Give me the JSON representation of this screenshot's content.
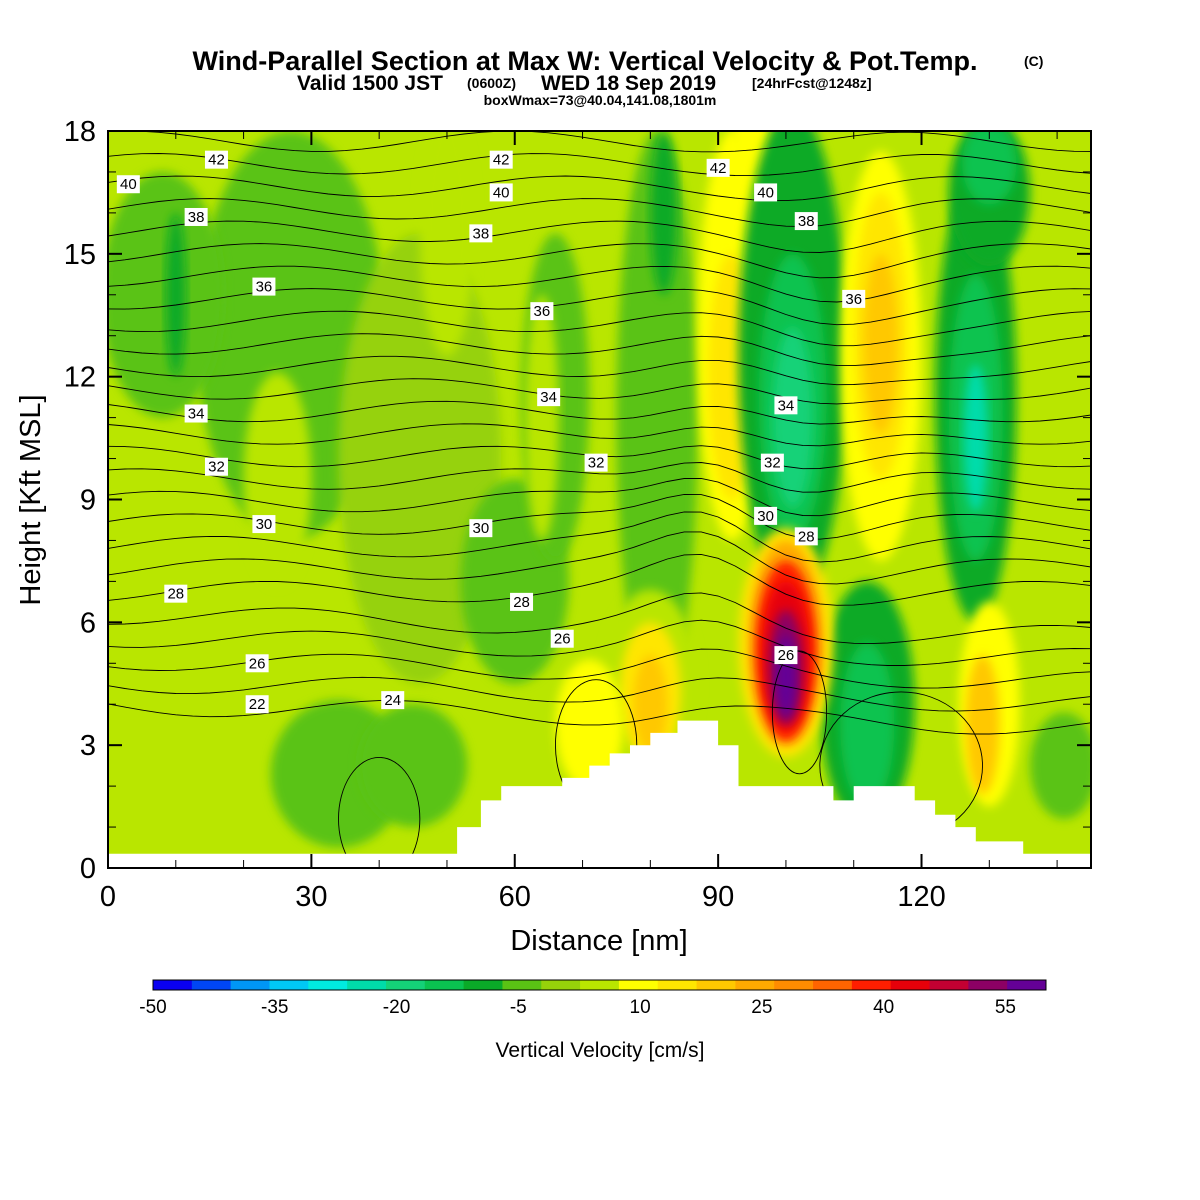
{
  "header": {
    "title_main": "Wind-Parallel Section at Max W: Vertical Velocity & Pot.Temp.",
    "title_mark": "(C)",
    "subtitle_valid": "Valid 1500 JST",
    "subtitle_z": "(0600Z)",
    "subtitle_date": "WED 18 Sep 2019",
    "subtitle_fcst": "[24hrFcst@1248z]",
    "box_info": "boxWmax=73@40.04,141.08,1801m"
  },
  "chart_data": {
    "type": "heatmap",
    "title": "Wind-Parallel Section at Max W: Vertical Velocity & Pot.Temp.",
    "xlabel": "Distance [nm]",
    "ylabel": "Height [Kft MSL]",
    "xlim": [
      0,
      145
    ],
    "ylim": [
      0,
      18
    ],
    "x_ticks": [
      "0",
      "30",
      "60",
      "90",
      "120"
    ],
    "y_ticks": [
      "0",
      "3",
      "6",
      "9",
      "12",
      "15",
      "18"
    ],
    "colorbar": {
      "label": "Vertical Velocity [cm/s]",
      "tick_labels": [
        "-50",
        "-35",
        "-20",
        "-5",
        "10",
        "25",
        "40",
        "55"
      ],
      "bin_edges": [
        -50,
        -45,
        -40,
        -35,
        -30,
        -25,
        -20,
        -15,
        -10,
        -5,
        0,
        5,
        10,
        15,
        20,
        25,
        30,
        35,
        40,
        45,
        50,
        55,
        60
      ],
      "colors": [
        "#0a00f0",
        "#0046f5",
        "#0096f5",
        "#00c8f5",
        "#00ebe0",
        "#00dcaa",
        "#14d278",
        "#0ac350",
        "#0aaa28",
        "#5ac314",
        "#96d20a",
        "#b9e600",
        "#ffff00",
        "#ffe600",
        "#ffc800",
        "#ffaa00",
        "#ff8c00",
        "#ff6400",
        "#ff1e00",
        "#e6000a",
        "#c30032",
        "#8c0064",
        "#640096"
      ]
    },
    "theta_contour_labels": [
      {
        "text": "42",
        "x": 16,
        "y": 17.3
      },
      {
        "text": "42",
        "x": 58,
        "y": 17.3
      },
      {
        "text": "42",
        "x": 90,
        "y": 17.1
      },
      {
        "text": "40",
        "x": 3,
        "y": 16.7
      },
      {
        "text": "40",
        "x": 58,
        "y": 16.5
      },
      {
        "text": "40",
        "x": 97,
        "y": 16.5
      },
      {
        "text": "38",
        "x": 13,
        "y": 15.9
      },
      {
        "text": "38",
        "x": 55,
        "y": 15.5
      },
      {
        "text": "38",
        "x": 103,
        "y": 15.8
      },
      {
        "text": "36",
        "x": 23,
        "y": 14.2
      },
      {
        "text": "36",
        "x": 64,
        "y": 13.6
      },
      {
        "text": "36",
        "x": 110,
        "y": 13.9
      },
      {
        "text": "34",
        "x": 13,
        "y": 11.1
      },
      {
        "text": "34",
        "x": 65,
        "y": 11.5
      },
      {
        "text": "34",
        "x": 100,
        "y": 11.3
      },
      {
        "text": "32",
        "x": 16,
        "y": 9.8
      },
      {
        "text": "32",
        "x": 72,
        "y": 9.9
      },
      {
        "text": "32",
        "x": 98,
        "y": 9.9
      },
      {
        "text": "30",
        "x": 23,
        "y": 8.4
      },
      {
        "text": "30",
        "x": 55,
        "y": 8.3
      },
      {
        "text": "30",
        "x": 97,
        "y": 8.6
      },
      {
        "text": "28",
        "x": 103,
        "y": 8.1
      },
      {
        "text": "28",
        "x": 10,
        "y": 6.7
      },
      {
        "text": "28",
        "x": 61,
        "y": 6.5
      },
      {
        "text": "26",
        "x": 67,
        "y": 5.6
      },
      {
        "text": "26",
        "x": 100,
        "y": 5.2
      },
      {
        "text": "26",
        "x": 22,
        "y": 5.0
      },
      {
        "text": "24",
        "x": 42,
        "y": 4.1
      },
      {
        "text": "22",
        "x": 22,
        "y": 4.0
      }
    ],
    "terrain_profile_kft": [
      [
        0,
        0.35
      ],
      [
        51.5,
        0.35
      ],
      [
        51.5,
        1.0
      ],
      [
        55,
        1.0
      ],
      [
        55,
        1.65
      ],
      [
        58,
        1.65
      ],
      [
        58,
        2.0
      ],
      [
        67,
        2.0
      ],
      [
        67,
        2.2
      ],
      [
        71,
        2.2
      ],
      [
        71,
        2.5
      ],
      [
        74,
        2.5
      ],
      [
        74,
        2.8
      ],
      [
        77,
        2.8
      ],
      [
        77,
        3.0
      ],
      [
        80,
        3.0
      ],
      [
        80,
        3.3
      ],
      [
        84,
        3.3
      ],
      [
        84,
        3.6
      ],
      [
        90,
        3.6
      ],
      [
        90,
        3.0
      ],
      [
        93,
        3.0
      ],
      [
        93,
        2.0
      ],
      [
        107,
        2.0
      ],
      [
        107,
        1.65
      ],
      [
        110,
        1.65
      ],
      [
        110,
        2.0
      ],
      [
        119,
        2.0
      ],
      [
        119,
        1.65
      ],
      [
        122,
        1.65
      ],
      [
        122,
        1.3
      ],
      [
        125,
        1.3
      ],
      [
        125,
        1.0
      ],
      [
        128,
        1.0
      ],
      [
        128,
        0.65
      ],
      [
        135,
        0.65
      ],
      [
        135,
        0.35
      ],
      [
        145,
        0.35
      ]
    ]
  }
}
